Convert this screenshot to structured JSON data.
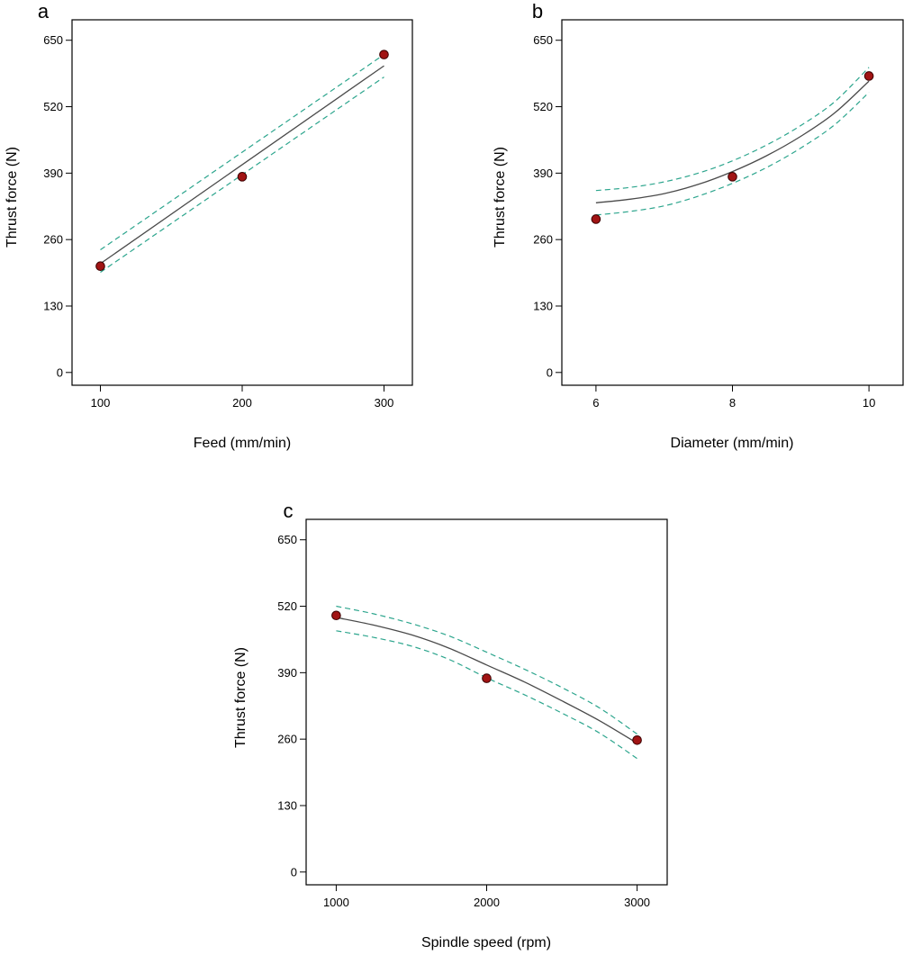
{
  "colors": {
    "fit_line": "#4a4a4a",
    "confidence_band": "#2ca58d",
    "points": "#a11414"
  },
  "chart_data": [
    {
      "panel": "a",
      "type": "line",
      "xlabel": "Feed (mm/min)",
      "ylabel": "Thrust force (N)",
      "x_ticks": [
        100,
        200,
        300
      ],
      "y_ticks": [
        0,
        130,
        260,
        390,
        520,
        650
      ],
      "xlim": [
        80,
        320
      ],
      "ylim": [
        -25,
        690
      ],
      "fit": {
        "x": [
          100,
          300
        ],
        "y": [
          213,
          600
        ]
      },
      "ci_upper": {
        "x": [
          100,
          300
        ],
        "y": [
          240,
          622
        ]
      },
      "ci_lower": {
        "x": [
          100,
          300
        ],
        "y": [
          196,
          578
        ]
      },
      "points": {
        "x": [
          100,
          200,
          300
        ],
        "y": [
          208,
          383,
          622
        ]
      }
    },
    {
      "panel": "b",
      "type": "line",
      "xlabel": "Diameter (mm/min)",
      "ylabel": "Thrust force (N)",
      "x_ticks": [
        6,
        8,
        10
      ],
      "y_ticks": [
        0,
        130,
        260,
        390,
        520,
        650
      ],
      "xlim": [
        5.5,
        10.5
      ],
      "ylim": [
        -25,
        690
      ],
      "fit": {
        "x": [
          6,
          6.5,
          7,
          7.5,
          8,
          8.5,
          9,
          9.5,
          10
        ],
        "y": [
          332,
          339,
          350,
          368,
          393,
          424,
          462,
          508,
          570
        ]
      },
      "ci_upper": {
        "x": [
          6,
          6.5,
          7,
          7.5,
          8,
          8.5,
          9,
          9.5,
          10
        ],
        "y": [
          356,
          362,
          373,
          390,
          414,
          445,
          483,
          530,
          597
        ]
      },
      "ci_lower": {
        "x": [
          6,
          6.5,
          7,
          7.5,
          8,
          8.5,
          9,
          9.5,
          10
        ],
        "y": [
          308,
          315,
          326,
          345,
          370,
          401,
          439,
          485,
          548
        ]
      },
      "points": {
        "x": [
          6,
          8,
          10
        ],
        "y": [
          300,
          383,
          580
        ]
      }
    },
    {
      "panel": "c",
      "type": "line",
      "xlabel": "Spindle speed (rpm)",
      "ylabel": "Thrust force (N)",
      "x_ticks": [
        1000,
        2000,
        3000
      ],
      "y_ticks": [
        0,
        130,
        260,
        390,
        520,
        650
      ],
      "xlim": [
        800,
        3200
      ],
      "ylim": [
        -25,
        690
      ],
      "fit": {
        "x": [
          1000,
          1250,
          1500,
          1750,
          2000,
          2250,
          2500,
          2750,
          3000
        ],
        "y": [
          498,
          483,
          464,
          438,
          405,
          372,
          335,
          296,
          252
        ]
      },
      "ci_upper": {
        "x": [
          1000,
          1250,
          1500,
          1750,
          2000,
          2250,
          2500,
          2750,
          3000
        ],
        "y": [
          520,
          505,
          486,
          462,
          430,
          397,
          361,
          321,
          270
        ]
      },
      "ci_lower": {
        "x": [
          1000,
          1250,
          1500,
          1750,
          2000,
          2250,
          2500,
          2750,
          3000
        ],
        "y": [
          472,
          459,
          442,
          416,
          380,
          347,
          311,
          272,
          222
        ]
      },
      "points": {
        "x": [
          1000,
          2000,
          3000
        ],
        "y": [
          502,
          379,
          258
        ]
      }
    }
  ]
}
